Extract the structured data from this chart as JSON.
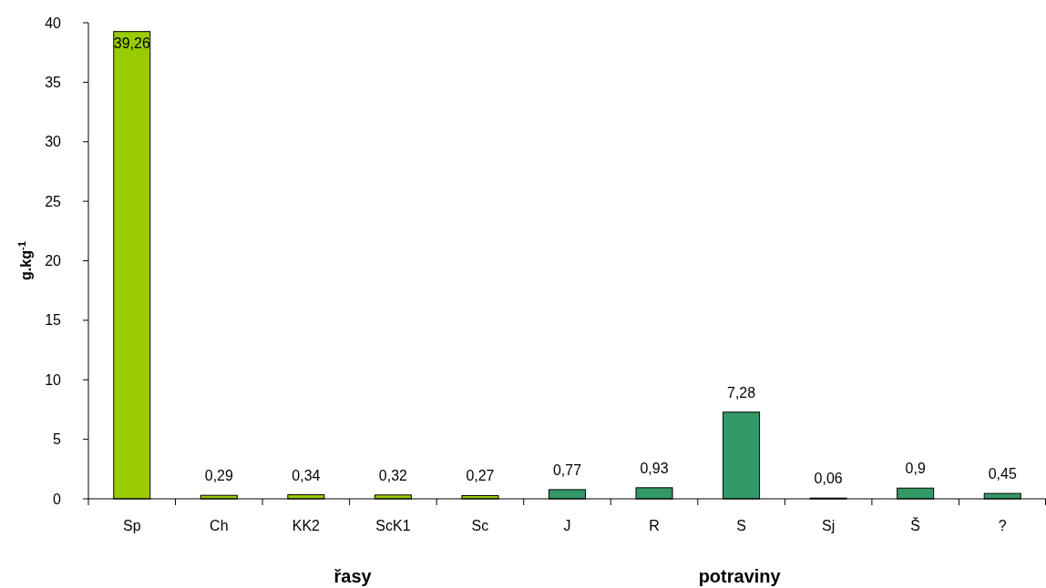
{
  "chart_data": {
    "type": "bar",
    "ylabel": "g.kg$^{-1}$",
    "categories": [
      "Sp",
      "Ch",
      "KK2",
      "ScK1",
      "Sc",
      "J",
      "R",
      "S",
      "Sj",
      "Š",
      "?"
    ],
    "values": [
      39.26,
      0.29,
      0.34,
      0.32,
      0.27,
      0.77,
      0.93,
      7.28,
      0.06,
      0.9,
      0.45
    ],
    "colors": [
      "#99cc00",
      "#99cc00",
      "#99cc00",
      "#99cc00",
      "#99cc00",
      "#339966",
      "#339966",
      "#339966",
      "#339966",
      "#339966",
      "#339966"
    ],
    "value_labels": [
      "39,26",
      "0,29",
      "0,34",
      "0,32",
      "0,27",
      "0,77",
      "0,93",
      "7,28",
      "0,06",
      "0,9",
      "0,45"
    ],
    "ylim": [
      0,
      40
    ],
    "yticks": [
      0,
      5,
      10,
      15,
      20,
      25,
      30,
      35,
      40
    ],
    "grid": false,
    "annotations": [
      "řasy",
      "potraviny"
    ]
  }
}
